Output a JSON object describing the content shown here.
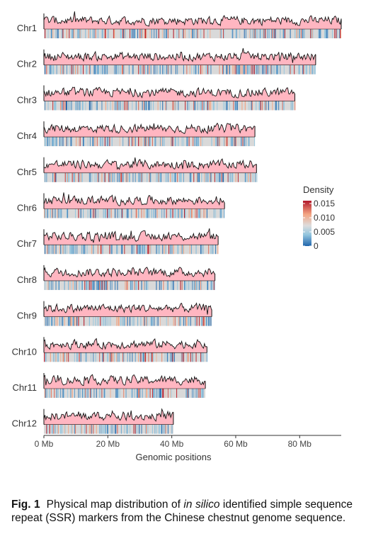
{
  "chart_data": {
    "type": "area",
    "xlabel": "Genomic positions",
    "x_ticks": [
      "0 Mb",
      "20 Mb",
      "40 Mb",
      "60 Mb",
      "80 Mb"
    ],
    "x_tick_values_mb": [
      0,
      20,
      40,
      60,
      80
    ],
    "xlim_mb": [
      0,
      93
    ],
    "legend_position": "right",
    "legend": {
      "title": "Density",
      "labels": [
        "0.015",
        "0.010",
        "0.005",
        "0"
      ],
      "values": [
        0.015,
        0.01,
        0.005,
        0
      ],
      "colors": [
        "#2166ac",
        "#92c5de",
        "#dddddd",
        "#f4a582",
        "#b2182b"
      ]
    },
    "area_color": "#ffb6c1",
    "chromosomes": [
      {
        "name": "Chr1",
        "length_mb": 93.0
      },
      {
        "name": "Chr2",
        "length_mb": 85.0
      },
      {
        "name": "Chr3",
        "length_mb": 78.5
      },
      {
        "name": "Chr4",
        "length_mb": 66.0
      },
      {
        "name": "Chr5",
        "length_mb": 66.5
      },
      {
        "name": "Chr6",
        "length_mb": 56.5
      },
      {
        "name": "Chr7",
        "length_mb": 54.5
      },
      {
        "name": "Chr8",
        "length_mb": 53.5
      },
      {
        "name": "Chr9",
        "length_mb": 52.5
      },
      {
        "name": "Chr10",
        "length_mb": 51.0
      },
      {
        "name": "Chr11",
        "length_mb": 50.5
      },
      {
        "name": "Chr12",
        "length_mb": 40.5
      }
    ]
  },
  "caption": {
    "label": "Fig. 1",
    "text_before": "Physical map distribution of ",
    "italic": "in silico",
    "text_after": " identified simple sequence repeat (SSR) markers from the Chinese chestnut genome sequence."
  }
}
